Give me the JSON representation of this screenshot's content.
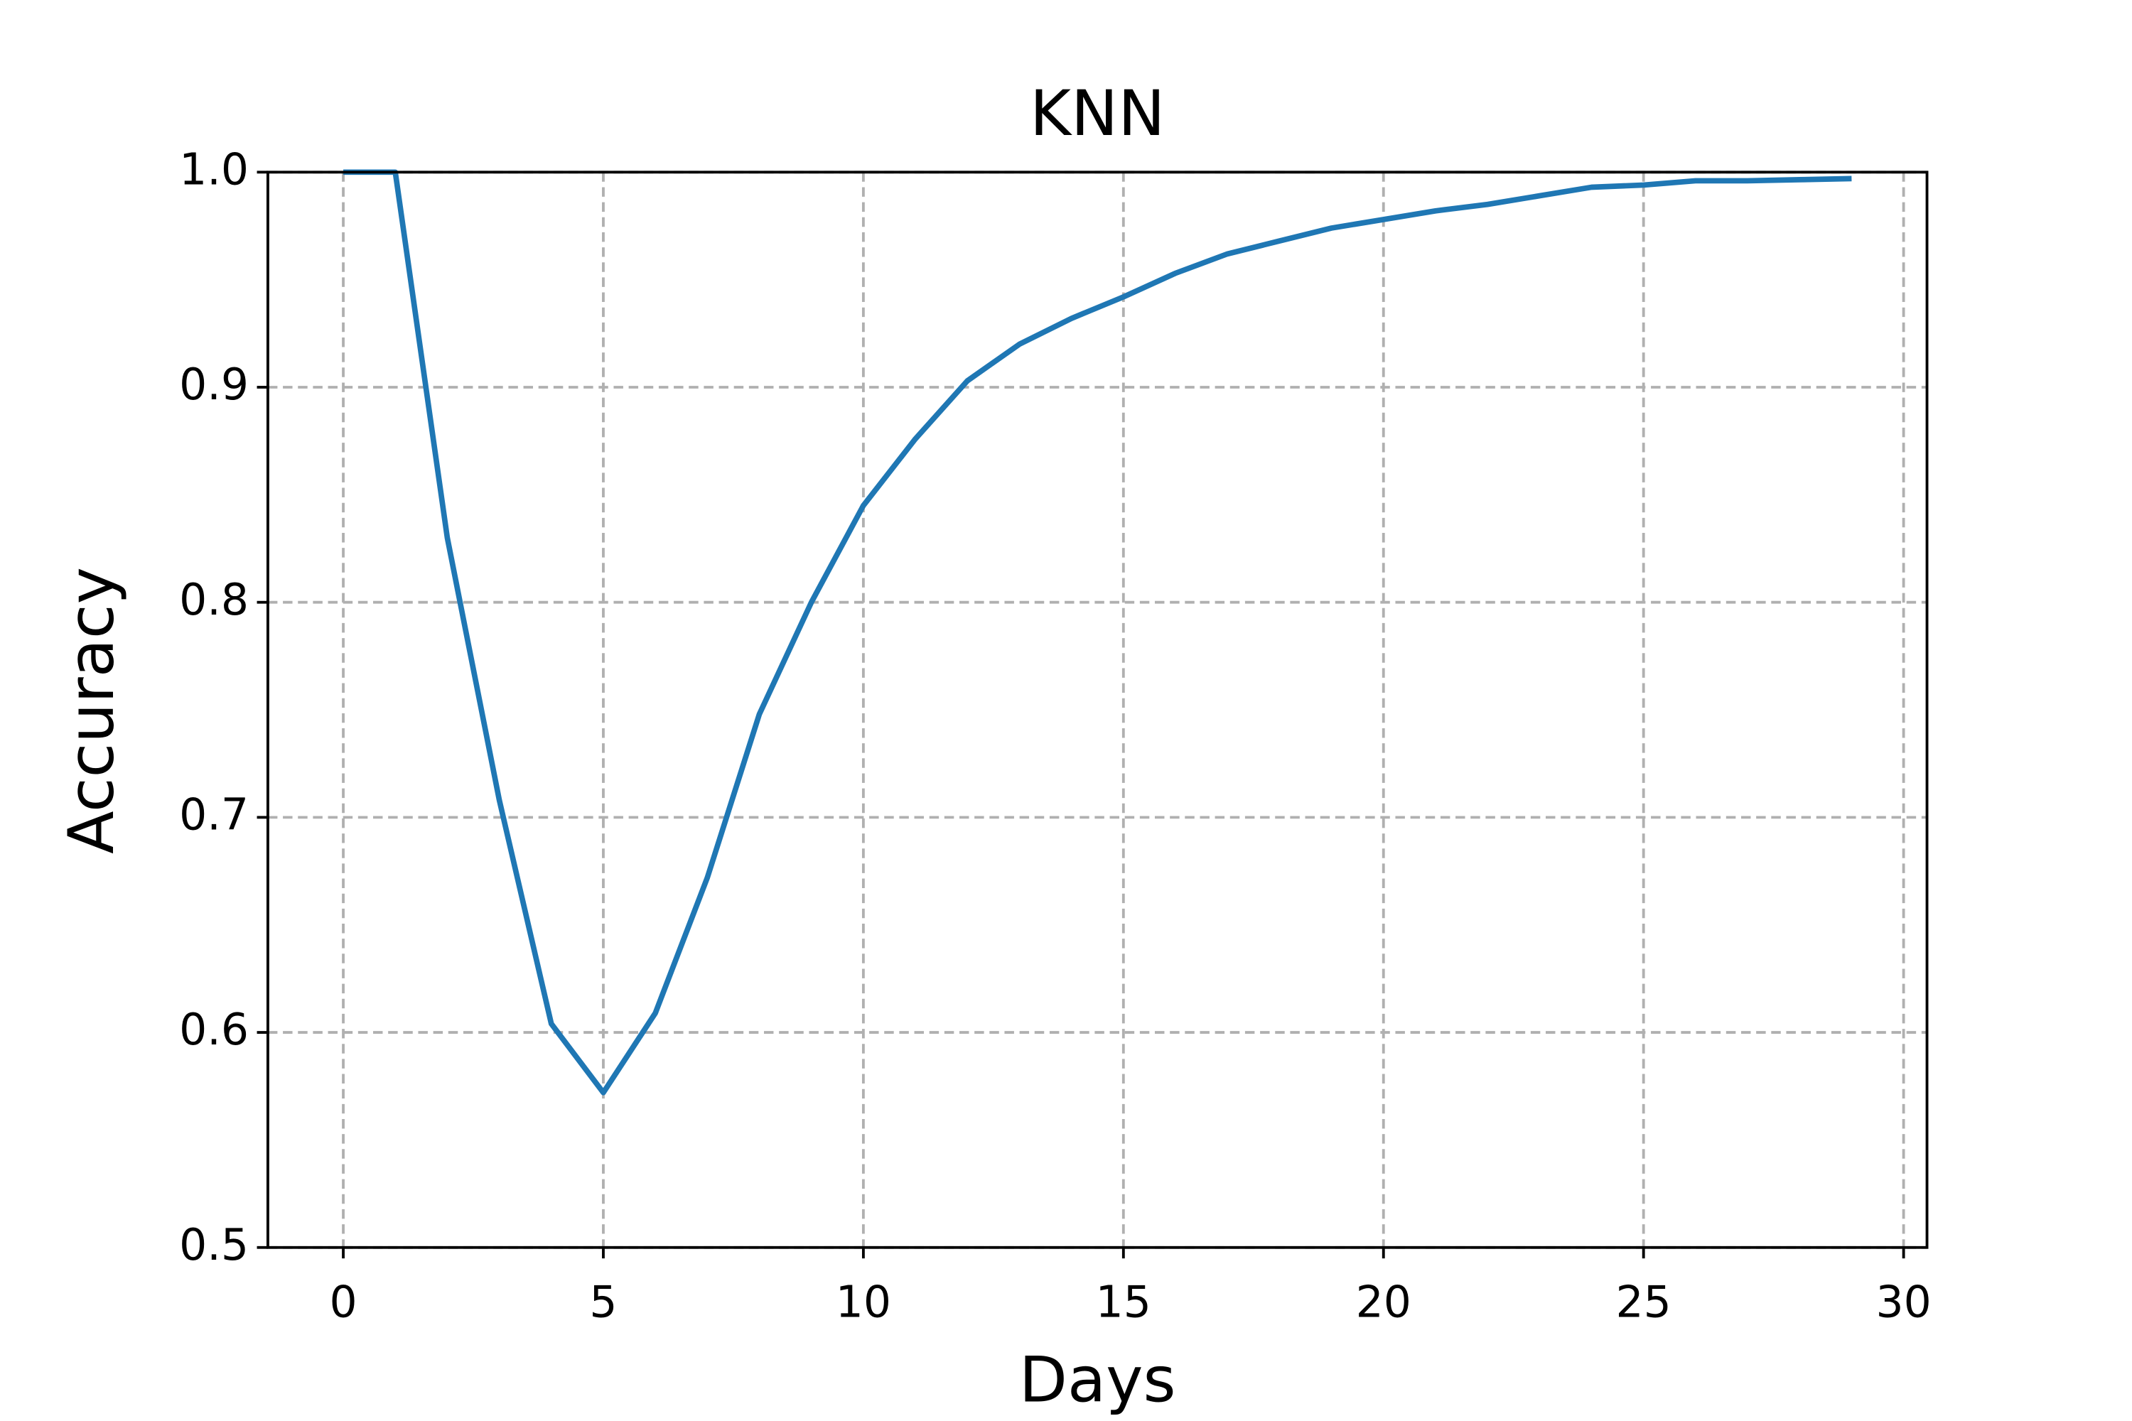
{
  "chart_data": {
    "type": "line",
    "title": "KNN",
    "x_label": "Days",
    "y_label": "Accuracy",
    "x": [
      0,
      1,
      2,
      3,
      4,
      5,
      6,
      7,
      8,
      9,
      10,
      11,
      12,
      13,
      14,
      15,
      16,
      17,
      18,
      19,
      20,
      21,
      22,
      23,
      24,
      25,
      26,
      27,
      28,
      29
    ],
    "series": [
      {
        "color": "#1f77b4",
        "values": [
          1.0,
          1.0,
          0.83,
          0.708,
          0.604,
          0.572,
          0.609,
          0.672,
          0.748,
          0.8,
          0.845,
          0.876,
          0.903,
          0.92,
          0.932,
          0.942,
          0.953,
          0.962,
          0.968,
          0.974,
          0.978,
          0.982,
          0.985,
          0.989,
          0.993,
          0.994,
          0.996,
          0.996,
          0.9965,
          0.997
        ]
      }
    ],
    "xlim": [
      -1.45,
      30.45
    ],
    "ylim": [
      0.5,
      1
    ],
    "xticks": [
      0,
      5,
      10,
      15,
      20,
      25,
      30
    ],
    "yticks": [
      0.5,
      0.6,
      0.7,
      0.8,
      0.9,
      {
        "value": 1,
        "label": "1.0"
      }
    ],
    "grid": true
  }
}
